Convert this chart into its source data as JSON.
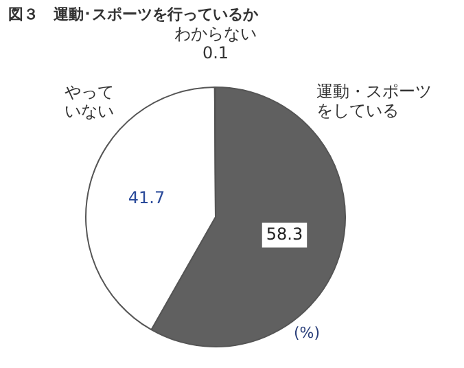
{
  "chart_data": {
    "type": "pie",
    "title": "図３　運動･スポーツを行っているか",
    "categories": [
      "運動・スポーツをしている",
      "やっていない",
      "わからない"
    ],
    "values": [
      58.3,
      41.7,
      0.1
    ],
    "colors": [
      "#606060",
      "#ffffff",
      "#ffffff"
    ],
    "data_labels": true,
    "legend": false,
    "annotations": [
      "(%)"
    ]
  }
}
